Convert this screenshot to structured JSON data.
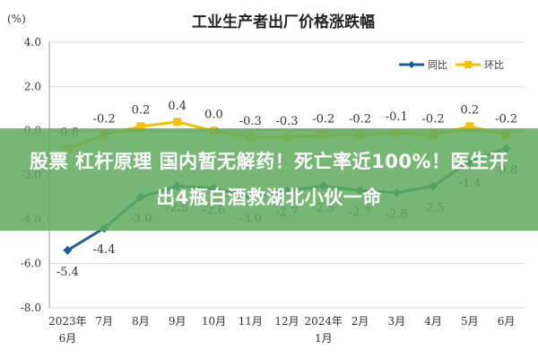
{
  "chart_data": {
    "type": "line",
    "title": "工业生产者出厂价格涨跌幅",
    "unit": "(%)",
    "ylim": [
      -8.0,
      4.0
    ],
    "yticks": [
      "4.0",
      "2.0",
      "0.0",
      "-2.0",
      "-4.0",
      "-6.0",
      "-8.0"
    ],
    "categories": [
      [
        "2023年",
        "6月"
      ],
      [
        "7月"
      ],
      [
        "8月"
      ],
      [
        "9月"
      ],
      [
        "10月"
      ],
      [
        "11月"
      ],
      [
        "12月"
      ],
      [
        "2024年",
        "1月"
      ],
      [
        "2月"
      ],
      [
        "3月"
      ],
      [
        "4月"
      ],
      [
        "5月"
      ],
      [
        "6月"
      ]
    ],
    "series": [
      {
        "name": "同比",
        "color": "#1f5aa6",
        "values": [
          -5.4,
          -4.4,
          -3.0,
          -2.5,
          -2.6,
          -3.0,
          -2.7,
          -2.5,
          -2.7,
          -2.8,
          -2.5,
          -1.4,
          -0.8
        ]
      },
      {
        "name": "环比",
        "color": "#f2c200",
        "values": [
          -0.8,
          -0.2,
          0.2,
          0.4,
          0.0,
          -0.3,
          -0.3,
          -0.2,
          -0.2,
          -0.1,
          -0.2,
          0.2,
          -0.2
        ]
      }
    ],
    "grid": true,
    "legend": "top-right"
  },
  "overlay": {
    "text": "股票 杠杆原理 国内暂无解药！死亡率近100%！医生开出4瓶白酒救湖北小伙一命",
    "color": "#60ac5c"
  }
}
